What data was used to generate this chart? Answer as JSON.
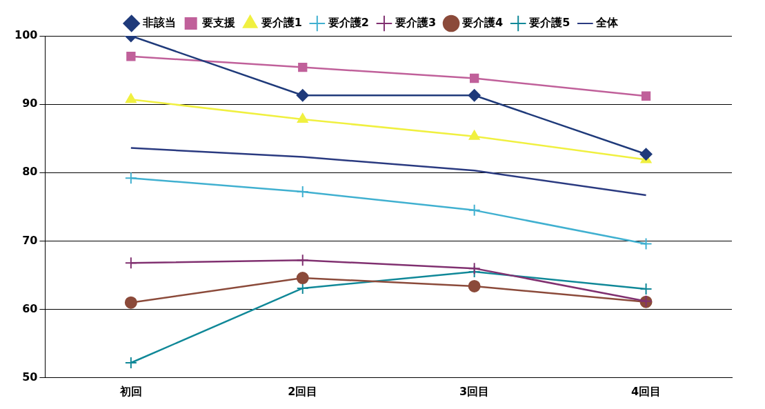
{
  "chart_data": {
    "type": "line",
    "categories": [
      "初回",
      "2回目",
      "3回目",
      "4回目"
    ],
    "series": [
      {
        "name": "非該当",
        "color": "#1f3a7a",
        "marker": "diamond",
        "values": [
          100,
          91.3,
          91.3,
          82.7
        ]
      },
      {
        "name": "要支援",
        "color": "#c0609a",
        "marker": "square",
        "values": [
          97.0,
          95.4,
          93.8,
          91.2
        ]
      },
      {
        "name": "要介護1",
        "color": "#f0f040",
        "marker": "triangle",
        "values": [
          90.7,
          87.8,
          85.3,
          81.9
        ]
      },
      {
        "name": "要介護2",
        "color": "#40b0d0",
        "marker": "cross",
        "values": [
          79.2,
          77.2,
          74.5,
          69.6
        ]
      },
      {
        "name": "要介護3",
        "color": "#803070",
        "marker": "cross",
        "values": [
          66.8,
          67.2,
          66.0,
          61.2
        ]
      },
      {
        "name": "要介護4",
        "color": "#8b4a3a",
        "marker": "circle",
        "values": [
          61.0,
          64.6,
          63.4,
          61.1
        ]
      },
      {
        "name": "要介護5",
        "color": "#108898",
        "marker": "cross",
        "values": [
          52.2,
          63.1,
          65.5,
          63.0
        ]
      },
      {
        "name": "全体",
        "color": "#2a3a80",
        "marker": "none",
        "values": [
          83.6,
          82.3,
          80.3,
          76.7
        ]
      }
    ],
    "ylim": [
      50,
      100
    ],
    "yticks": [
      50,
      60,
      70,
      80,
      90,
      100
    ],
    "grid": "y",
    "legend": "top"
  }
}
